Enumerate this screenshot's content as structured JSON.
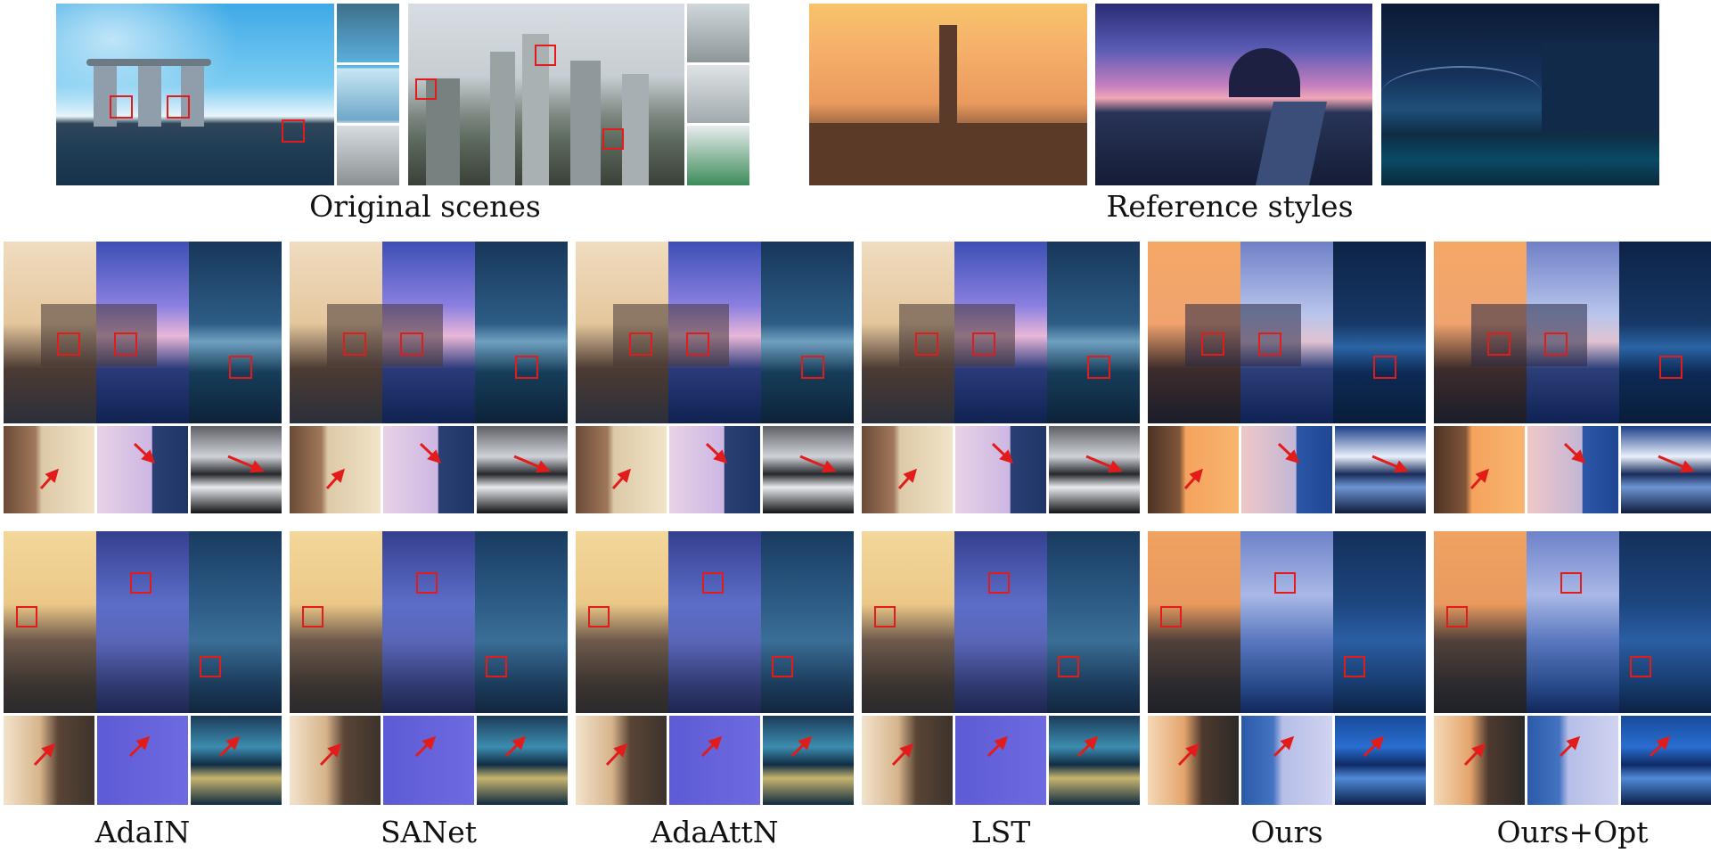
{
  "captions": {
    "original": "Original scenes",
    "reference": "Reference styles",
    "methods": [
      "AdaIN",
      "SANet",
      "AdaAttN",
      "LST",
      "Ours",
      "Ours+Opt"
    ]
  },
  "colors": {
    "highlight_box": "#e21b1b",
    "arrow": "#e21b1b",
    "background": "#ffffff"
  },
  "icons": {
    "box": "red-highlight-box",
    "arrow": "red-arrow-icon"
  }
}
